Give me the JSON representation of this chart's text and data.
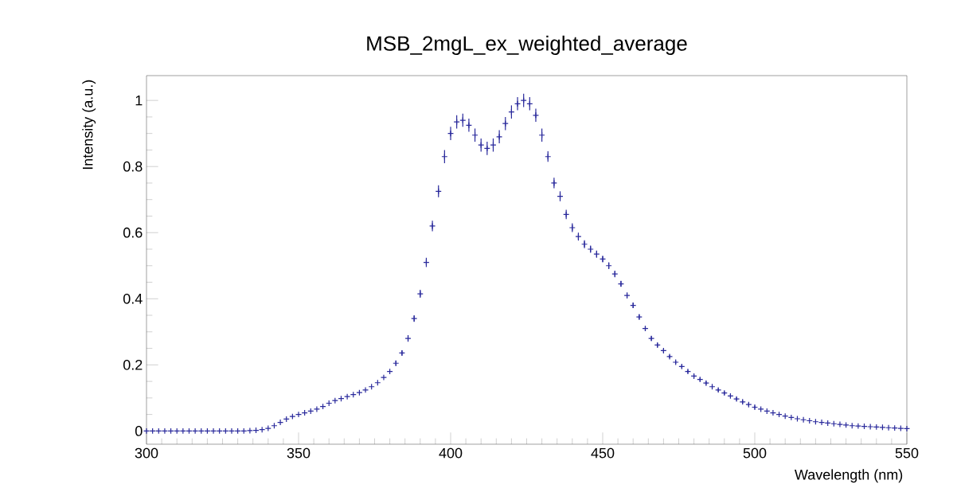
{
  "chart_data": {
    "type": "scatter",
    "title": "MSB_2mgL_ex_weighted_average",
    "xlabel": "Wavelength (nm)",
    "ylabel": "Intensity (a.u.)",
    "xlim": [
      300,
      550
    ],
    "ylim": [
      -0.04,
      1.075
    ],
    "xticks": [
      300,
      350,
      400,
      450,
      500,
      550
    ],
    "yticks": [
      0,
      0.2,
      0.4,
      0.6,
      0.8,
      1
    ],
    "marker": "cross",
    "grid": false,
    "series": [
      {
        "color": "#2a2a9c",
        "x": [
          300,
          302,
          304,
          306,
          308,
          310,
          312,
          314,
          316,
          318,
          320,
          322,
          324,
          326,
          328,
          330,
          332,
          334,
          336,
          338,
          340,
          342,
          344,
          346,
          348,
          350,
          352,
          354,
          356,
          358,
          360,
          362,
          364,
          366,
          368,
          370,
          372,
          374,
          376,
          378,
          380,
          382,
          384,
          386,
          388,
          390,
          392,
          394,
          396,
          398,
          400,
          402,
          404,
          406,
          408,
          410,
          412,
          414,
          416,
          418,
          420,
          422,
          424,
          426,
          428,
          430,
          432,
          434,
          436,
          438,
          440,
          442,
          444,
          446,
          448,
          450,
          452,
          454,
          456,
          458,
          460,
          462,
          464,
          466,
          468,
          470,
          472,
          474,
          476,
          478,
          480,
          482,
          484,
          486,
          488,
          490,
          492,
          494,
          496,
          498,
          500,
          502,
          504,
          506,
          508,
          510,
          512,
          514,
          516,
          518,
          520,
          522,
          524,
          526,
          528,
          530,
          532,
          534,
          536,
          538,
          540,
          542,
          544,
          546,
          548,
          550
        ],
        "values": [
          0,
          0,
          0,
          0,
          0,
          0,
          0,
          0,
          0,
          0,
          0,
          0,
          0,
          0,
          0,
          0,
          0,
          0.001,
          0.002,
          0.004,
          0.008,
          0.016,
          0.026,
          0.036,
          0.044,
          0.05,
          0.055,
          0.06,
          0.066,
          0.074,
          0.084,
          0.092,
          0.098,
          0.104,
          0.11,
          0.116,
          0.124,
          0.134,
          0.146,
          0.162,
          0.18,
          0.205,
          0.236,
          0.28,
          0.34,
          0.415,
          0.51,
          0.62,
          0.725,
          0.83,
          0.9,
          0.935,
          0.94,
          0.925,
          0.895,
          0.865,
          0.855,
          0.865,
          0.89,
          0.93,
          0.965,
          0.99,
          1.0,
          0.99,
          0.955,
          0.895,
          0.83,
          0.75,
          0.71,
          0.655,
          0.615,
          0.588,
          0.565,
          0.55,
          0.535,
          0.52,
          0.5,
          0.475,
          0.445,
          0.41,
          0.38,
          0.345,
          0.31,
          0.28,
          0.26,
          0.243,
          0.225,
          0.208,
          0.195,
          0.18,
          0.166,
          0.156,
          0.145,
          0.134,
          0.124,
          0.115,
          0.106,
          0.097,
          0.088,
          0.08,
          0.072,
          0.066,
          0.06,
          0.055,
          0.05,
          0.045,
          0.041,
          0.037,
          0.034,
          0.031,
          0.028,
          0.026,
          0.024,
          0.022,
          0.02,
          0.018,
          0.016,
          0.015,
          0.014,
          0.013,
          0.012,
          0.011,
          0.01,
          0.009,
          0.008,
          0.007
        ],
        "errors": [
          null,
          null,
          null,
          null,
          null,
          null,
          null,
          null,
          null,
          null,
          null,
          null,
          null,
          null,
          null,
          null,
          null,
          null,
          null,
          null,
          null,
          null,
          null,
          null,
          null,
          null,
          null,
          null,
          null,
          null,
          null,
          null,
          null,
          null,
          null,
          null,
          null,
          null,
          null,
          null,
          null,
          0.008,
          0.008,
          0.01,
          0.01,
          0.012,
          0.014,
          0.016,
          0.018,
          0.02,
          0.02,
          0.02,
          0.02,
          0.02,
          0.02,
          0.02,
          0.02,
          0.02,
          0.02,
          0.02,
          0.02,
          0.02,
          0.02,
          0.02,
          0.02,
          0.02,
          0.016,
          0.016,
          0.015,
          0.014,
          0.013,
          0.012,
          0.012,
          0.011,
          0.011,
          0.01,
          0.01,
          0.01,
          0.009,
          0.009,
          0.008,
          0.008,
          0.007,
          0.007,
          0.006,
          0.006,
          0.005,
          0.005,
          0.005,
          0.005,
          0.005,
          0.005,
          0.005,
          0.005,
          0.005,
          0.005,
          0.005,
          0.005,
          0.005,
          0.005,
          0.005,
          null,
          null,
          null,
          null,
          null,
          null,
          null,
          null,
          null,
          null,
          null,
          null,
          null,
          null,
          null,
          null,
          null,
          null,
          null,
          null,
          null,
          null,
          null,
          null,
          null
        ]
      }
    ]
  }
}
